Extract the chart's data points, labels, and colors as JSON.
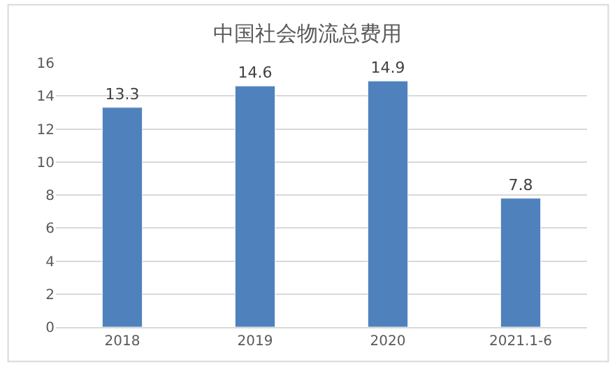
{
  "chart_data": {
    "type": "bar",
    "title": "中国社会物流总费用",
    "categories": [
      "2018",
      "2019",
      "2020",
      "2021.1-6"
    ],
    "values": [
      13.3,
      14.6,
      14.9,
      7.8
    ],
    "color": "#4f81bd",
    "ylim": [
      0,
      16
    ],
    "yticks": [
      0,
      2,
      4,
      6,
      8,
      10,
      12,
      14,
      16
    ],
    "grid": "y",
    "data_labels": true
  }
}
